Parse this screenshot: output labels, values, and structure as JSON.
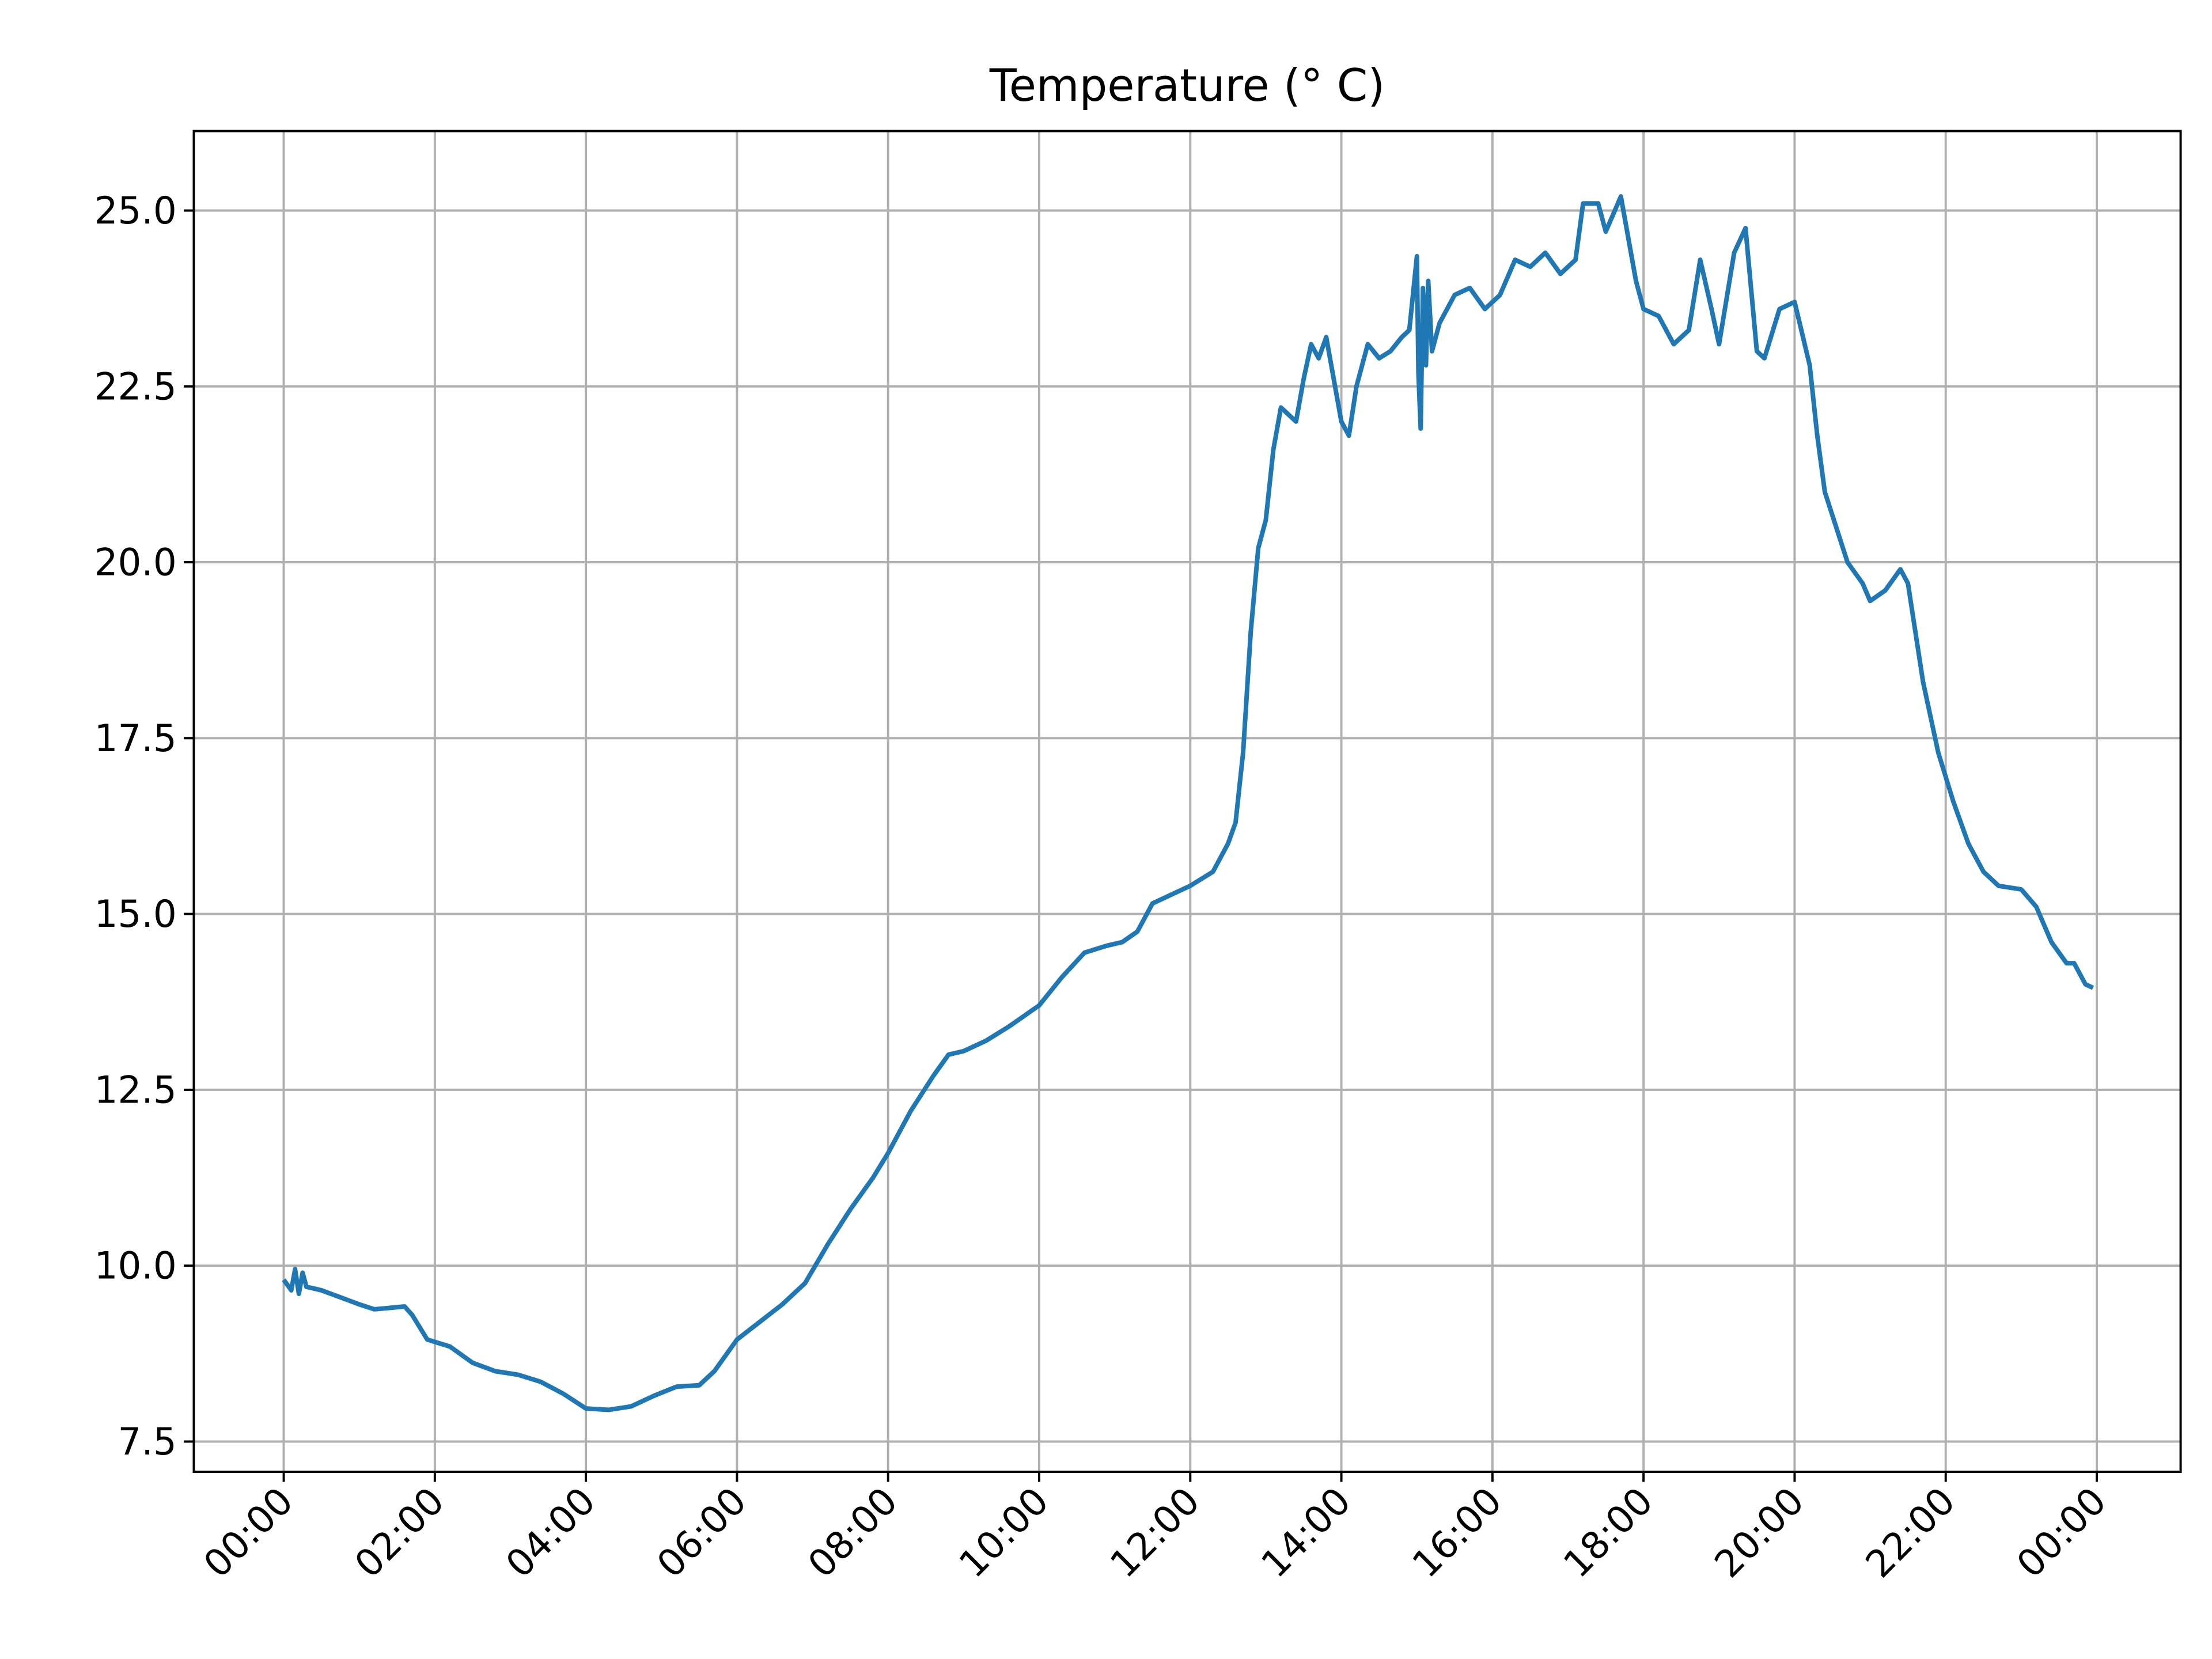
{
  "chart_data": {
    "type": "line",
    "title": "Temperature (° C)",
    "xlim": [
      -1.19,
      25.11
    ],
    "xticks": [
      {
        "value": 0,
        "label": "00:00"
      },
      {
        "value": 2,
        "label": "02:00"
      },
      {
        "value": 4,
        "label": "04:00"
      },
      {
        "value": 6,
        "label": "06:00"
      },
      {
        "value": 8,
        "label": "08:00"
      },
      {
        "value": 10,
        "label": "10:00"
      },
      {
        "value": 12,
        "label": "12:00"
      },
      {
        "value": 14,
        "label": "14:00"
      },
      {
        "value": 16,
        "label": "16:00"
      },
      {
        "value": 18,
        "label": "18:00"
      },
      {
        "value": 20,
        "label": "20:00"
      },
      {
        "value": 22,
        "label": "22:00"
      },
      {
        "value": 24,
        "label": "00:00"
      }
    ],
    "ylim": [
      7.07,
      26.13
    ],
    "yticks": [
      {
        "value": 7.5,
        "label": "7.5"
      },
      {
        "value": 10,
        "label": "10.0"
      },
      {
        "value": 12.5,
        "label": "12.5"
      },
      {
        "value": 15,
        "label": "15.0"
      },
      {
        "value": 17.5,
        "label": "17.5"
      },
      {
        "value": 20,
        "label": "20.0"
      },
      {
        "value": 22.5,
        "label": "22.5"
      },
      {
        "value": 25,
        "label": "25.0"
      }
    ],
    "grid": true,
    "series": [
      {
        "color": "#1f77b4",
        "x": [
          0,
          0.1,
          0.15,
          0.2,
          0.25,
          0.3,
          0.5,
          0.75,
          1.0,
          1.2,
          1.4,
          1.6,
          1.7,
          1.9,
          2.2,
          2.5,
          2.8,
          3.1,
          3.4,
          3.7,
          4.0,
          4.3,
          4.6,
          4.9,
          5.2,
          5.5,
          5.7,
          6.0,
          6.3,
          6.6,
          6.9,
          7.2,
          7.5,
          7.8,
          8.0,
          8.3,
          8.6,
          8.8,
          9.0,
          9.3,
          9.6,
          10.0,
          10.3,
          10.6,
          10.9,
          11.1,
          11.3,
          11.5,
          11.7,
          12.0,
          12.3,
          12.5,
          12.6,
          12.7,
          12.8,
          12.9,
          13.0,
          13.1,
          13.2,
          13.4,
          13.5,
          13.6,
          13.7,
          13.8,
          13.9,
          14.0,
          14.1,
          14.2,
          14.35,
          14.5,
          14.65,
          14.8,
          14.9,
          15.0,
          15.02,
          15.05,
          15.08,
          15.12,
          15.15,
          15.2,
          15.3,
          15.5,
          15.7,
          15.9,
          16.1,
          16.3,
          16.5,
          16.7,
          16.9,
          17.1,
          17.2,
          17.4,
          17.5,
          17.7,
          17.9,
          18.0,
          18.2,
          18.4,
          18.6,
          18.75,
          18.9,
          19.0,
          19.2,
          19.35,
          19.5,
          19.6,
          19.8,
          20.0,
          20.2,
          20.3,
          20.4,
          20.55,
          20.7,
          20.9,
          21.0,
          21.2,
          21.4,
          21.5,
          21.7,
          21.9,
          22.1,
          22.3,
          22.5,
          22.7,
          23.0,
          23.2,
          23.4,
          23.6,
          23.7,
          23.85,
          23.95
        ],
        "values": [
          9.8,
          9.65,
          9.95,
          9.6,
          9.9,
          9.7,
          9.65,
          9.55,
          9.45,
          9.38,
          9.4,
          9.42,
          9.3,
          8.95,
          8.85,
          8.62,
          8.5,
          8.45,
          8.35,
          8.18,
          7.97,
          7.95,
          8.0,
          8.15,
          8.28,
          8.3,
          8.5,
          8.95,
          9.2,
          9.45,
          9.75,
          10.3,
          10.8,
          11.25,
          11.6,
          12.2,
          12.7,
          13.0,
          13.05,
          13.2,
          13.4,
          13.7,
          14.1,
          14.45,
          14.55,
          14.6,
          14.75,
          15.15,
          15.25,
          15.4,
          15.6,
          16.0,
          16.3,
          17.3,
          19.0,
          20.2,
          20.6,
          21.6,
          22.2,
          22.0,
          22.6,
          23.1,
          22.9,
          23.2,
          22.6,
          22.0,
          21.8,
          22.5,
          23.1,
          22.9,
          23.0,
          23.2,
          23.3,
          24.35,
          22.7,
          21.9,
          23.9,
          22.8,
          24.0,
          23.0,
          23.4,
          23.8,
          23.9,
          23.6,
          23.8,
          24.3,
          24.2,
          24.4,
          24.1,
          24.3,
          25.1,
          25.1,
          24.7,
          25.2,
          24.0,
          23.6,
          23.5,
          23.1,
          23.3,
          24.3,
          23.6,
          23.1,
          24.4,
          24.75,
          23.0,
          22.9,
          23.6,
          23.7,
          22.8,
          21.8,
          21.0,
          20.5,
          20.0,
          19.7,
          19.45,
          19.6,
          19.9,
          19.7,
          18.3,
          17.3,
          16.6,
          16.0,
          15.6,
          15.4,
          15.35,
          15.1,
          14.6,
          14.3,
          14.3,
          14.0,
          13.95
        ]
      }
    ]
  }
}
